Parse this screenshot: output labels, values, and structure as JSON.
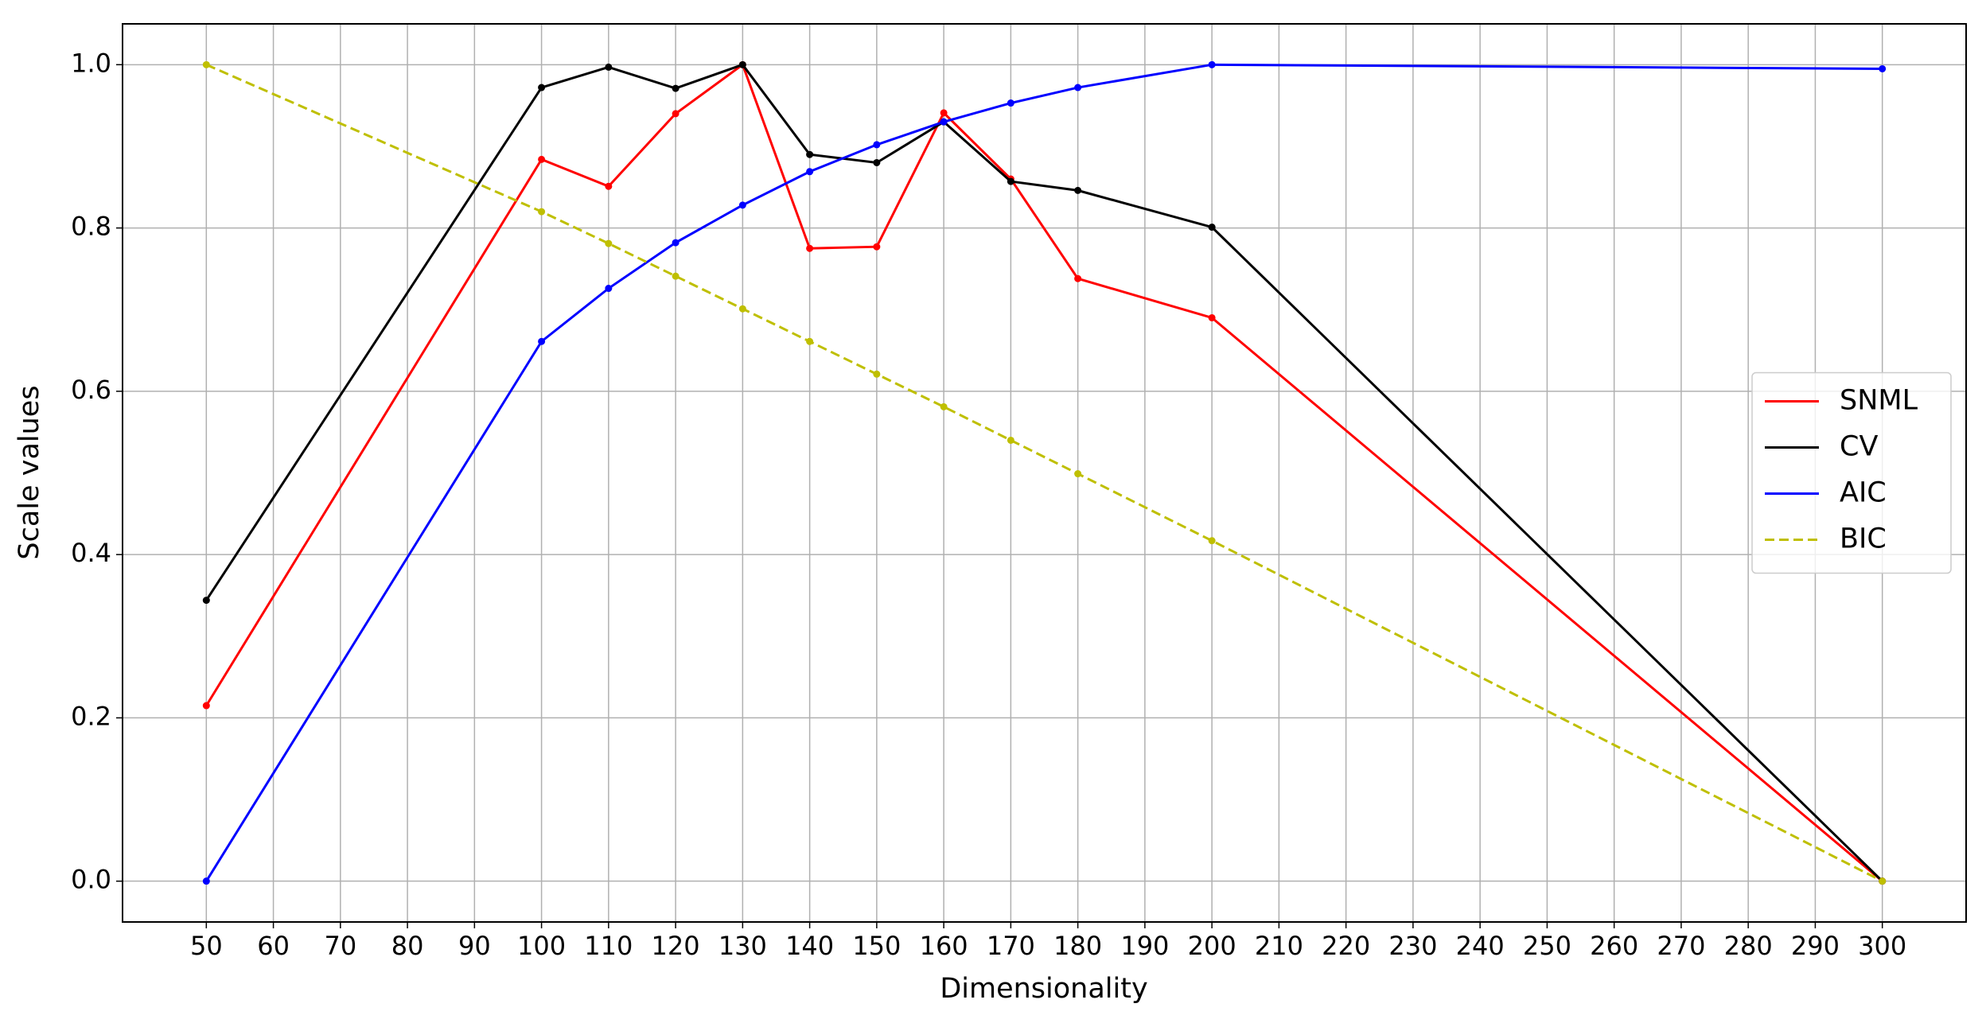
{
  "chart_data": {
    "type": "line",
    "xlabel": "Dimensionality",
    "ylabel": "Scale values",
    "x": [
      50,
      100,
      110,
      120,
      130,
      140,
      150,
      160,
      170,
      180,
      200,
      300
    ],
    "series": [
      {
        "name": "SNML",
        "color": "#ff0000",
        "linestyle": "solid",
        "values": [
          0.215,
          0.884,
          0.851,
          0.94,
          1.0,
          0.775,
          0.777,
          0.941,
          0.86,
          0.738,
          0.69,
          0.0
        ]
      },
      {
        "name": "CV",
        "color": "#000000",
        "linestyle": "solid",
        "values": [
          0.344,
          0.972,
          0.997,
          0.971,
          1.0,
          0.89,
          0.88,
          0.93,
          0.857,
          0.846,
          0.801,
          0.0
        ]
      },
      {
        "name": "AIC",
        "color": "#0000ff",
        "linestyle": "solid",
        "values": [
          0.0,
          0.661,
          0.726,
          0.782,
          0.828,
          0.869,
          0.902,
          0.93,
          0.953,
          0.972,
          1.0,
          0.995
        ]
      },
      {
        "name": "BIC",
        "color": "#bfbf00",
        "linestyle": "dashed",
        "values": [
          1.0,
          0.82,
          0.781,
          0.741,
          0.701,
          0.661,
          0.621,
          0.581,
          0.54,
          0.499,
          0.417,
          0.0
        ]
      }
    ],
    "xlim": [
      37.5,
      312.5
    ],
    "xticks": [
      50,
      60,
      70,
      80,
      90,
      100,
      110,
      120,
      130,
      140,
      150,
      160,
      170,
      180,
      190,
      200,
      210,
      220,
      230,
      240,
      250,
      260,
      270,
      280,
      290,
      300
    ],
    "ylim": [
      -0.05,
      1.05
    ],
    "yticks": [
      {
        "value": 0,
        "label": "0.0"
      },
      0.2,
      0.4,
      0.6,
      0.8,
      {
        "value": 1,
        "label": "1.0"
      }
    ],
    "grid": true,
    "legend": "center right"
  }
}
